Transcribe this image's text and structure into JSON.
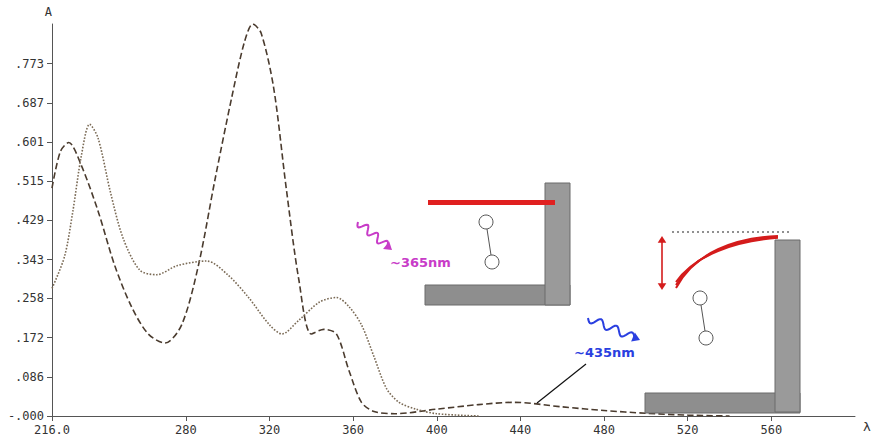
{
  "chart_data": {
    "type": "line",
    "y_label": "A",
    "x_label": "λ",
    "xlim": [
      216,
      600
    ],
    "xticks": [
      {
        "value": 216,
        "label": "216.0"
      },
      280,
      320,
      360,
      400,
      440,
      480,
      520,
      560
    ],
    "ylim": [
      0,
      0.86
    ],
    "yticks": [
      {
        "value": 0,
        "label": "-.000"
      },
      {
        "value": 0.086,
        "label": ".086"
      },
      {
        "value": 0.172,
        "label": ".172"
      },
      {
        "value": 0.258,
        "label": ".258"
      },
      {
        "value": 0.343,
        "label": ".343"
      },
      {
        "value": 0.429,
        "label": ".429"
      },
      {
        "value": 0.515,
        "label": ".515"
      },
      {
        "value": 0.601,
        "label": ".601"
      },
      {
        "value": 0.687,
        "label": ".687"
      },
      {
        "value": 0.773,
        "label": ".773"
      }
    ],
    "grid": false,
    "series": [
      {
        "color": "#4a3b2e",
        "line_style": "dashed",
        "x": [
          216,
          220,
          224,
          230,
          238,
          246,
          254,
          262,
          270,
          278,
          286,
          294,
          302,
          308,
          312,
          316,
          322,
          328,
          334,
          340,
          346,
          352,
          358,
          364,
          370,
          380,
          400,
          420,
          437,
          460,
          480,
          500,
          520,
          540
        ],
        "values": [
          0.5,
          0.58,
          0.6,
          0.55,
          0.45,
          0.33,
          0.24,
          0.18,
          0.16,
          0.2,
          0.33,
          0.52,
          0.7,
          0.82,
          0.86,
          0.84,
          0.72,
          0.5,
          0.3,
          0.18,
          0.19,
          0.18,
          0.1,
          0.03,
          0.01,
          0.005,
          0.015,
          0.025,
          0.03,
          0.02,
          0.012,
          0.006,
          0.002,
          0.0
        ]
      },
      {
        "color": "#7a6a55",
        "line_style": "dotted",
        "x": [
          216,
          222,
          226,
          230,
          234,
          238,
          244,
          250,
          258,
          266,
          276,
          290,
          300,
          310,
          320,
          326,
          334,
          344,
          352,
          358,
          364,
          370,
          376,
          382,
          390,
          400,
          420
        ],
        "values": [
          0.28,
          0.35,
          0.45,
          0.57,
          0.64,
          0.61,
          0.49,
          0.39,
          0.32,
          0.31,
          0.33,
          0.34,
          0.31,
          0.26,
          0.2,
          0.18,
          0.21,
          0.25,
          0.26,
          0.24,
          0.2,
          0.13,
          0.06,
          0.03,
          0.015,
          0.005,
          0.0
        ]
      }
    ],
    "annotations": [
      {
        "text": "~365nm",
        "color": "#c83cc8"
      },
      {
        "text": "~435nm",
        "color": "#2a3fe0"
      }
    ]
  }
}
